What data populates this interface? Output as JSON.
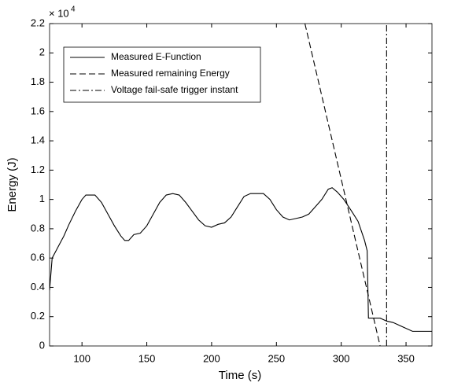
{
  "chart_data": {
    "type": "line",
    "xlabel": "Time (s)",
    "ylabel": "Energy (J)",
    "y_scale_base": "× 10",
    "y_scale_exponent": "4",
    "xlim": [
      75,
      370
    ],
    "xticks": [
      100,
      150,
      200,
      250,
      300,
      350
    ],
    "ylim": [
      0,
      2.2
    ],
    "yticks": [
      0,
      0.2,
      0.4,
      0.6,
      0.8,
      1,
      1.2,
      1.4,
      1.6,
      1.8,
      2,
      2.2
    ],
    "legend": "upper left",
    "series": [
      {
        "name": "Measured E-Function",
        "color": "#000000",
        "dash": "solid",
        "x": [
          75,
          77,
          80,
          83,
          86,
          90,
          95,
          100,
          103,
          110,
          115,
          120,
          125,
          130,
          133,
          136,
          140,
          145,
          150,
          155,
          160,
          165,
          170,
          175,
          180,
          185,
          190,
          195,
          200,
          205,
          210,
          215,
          220,
          225,
          230,
          240,
          245,
          250,
          255,
          260,
          265,
          270,
          275,
          280,
          285,
          290,
          293,
          297,
          302,
          308,
          313,
          318,
          320,
          321,
          330,
          335,
          340,
          345,
          350,
          355,
          370
        ],
        "values": [
          0.38,
          0.6,
          0.65,
          0.7,
          0.75,
          0.83,
          0.92,
          1.0,
          1.03,
          1.03,
          0.98,
          0.9,
          0.82,
          0.75,
          0.72,
          0.72,
          0.76,
          0.77,
          0.82,
          0.9,
          0.98,
          1.03,
          1.04,
          1.03,
          0.98,
          0.92,
          0.86,
          0.82,
          0.81,
          0.83,
          0.84,
          0.88,
          0.95,
          1.02,
          1.04,
          1.04,
          1.0,
          0.93,
          0.88,
          0.86,
          0.87,
          0.88,
          0.9,
          0.95,
          1.0,
          1.07,
          1.08,
          1.05,
          1.0,
          0.92,
          0.85,
          0.72,
          0.65,
          0.19,
          0.19,
          0.17,
          0.16,
          0.14,
          0.12,
          0.1,
          0.1
        ]
      },
      {
        "name": "Measured remaining Energy",
        "color": "#000000",
        "dash": "dashed",
        "x": [
          272,
          330
        ],
        "values": [
          2.2,
          0
        ]
      },
      {
        "name": "Voltage fail-safe trigger instant",
        "color": "#000000",
        "dash": "dashdot",
        "x": [
          335,
          335
        ],
        "values": [
          0,
          2.2
        ]
      }
    ]
  }
}
